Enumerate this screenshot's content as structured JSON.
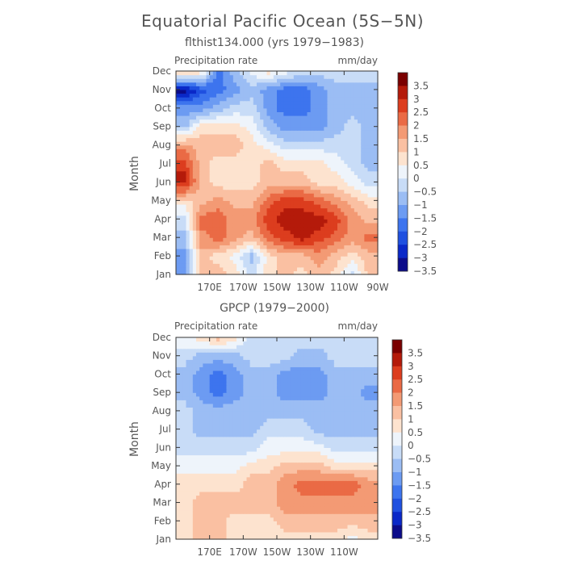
{
  "figure_title": "Equatorial Pacific Ocean (5S−5N)",
  "colorscale": {
    "colors": [
      "#0b0b8a",
      "#0a28c8",
      "#1f50e0",
      "#3d74ee",
      "#6c9bf2",
      "#9bbdf4",
      "#c8dcf7",
      "#eef4fb",
      "#fde3cf",
      "#fac0a2",
      "#f39a74",
      "#ea6a45",
      "#dc3d1e",
      "#b41a0a",
      "#7a0000"
    ],
    "labels": [
      "3.5",
      "3",
      "2.5",
      "2",
      "1.5",
      "1",
      "0.5",
      "0",
      "−0.5",
      "−1",
      "−1.5",
      "−2",
      "−2.5",
      "−3",
      "−3.5"
    ]
  },
  "chart_data": [
    {
      "type": "heatmap",
      "title": "flthist134.000 (yrs 1979−1983)",
      "field_label": "Precipitation rate",
      "units": "mm/day",
      "xlabel": "",
      "ylabel": "Month",
      "xlim": [
        150,
        270
      ],
      "x_ticks": [
        "170E",
        "170W",
        "150W",
        "130W",
        "110W",
        "90W"
      ],
      "x_tick_values": [
        170,
        190,
        210,
        230,
        250,
        270
      ],
      "y_ticks": [
        "Jan",
        "Feb",
        "Mar",
        "Apr",
        "May",
        "Jun",
        "Jul",
        "Aug",
        "Sep",
        "Oct",
        "Nov",
        "Dec"
      ],
      "legend": "right",
      "lon_nodes": [
        155,
        165,
        175,
        185,
        195,
        205,
        215,
        225,
        235,
        245,
        255,
        265
      ],
      "values": [
        [
          -1.5,
          1.0,
          1.0,
          0.5,
          -0.5,
          0.5,
          1.0,
          0.5,
          1.0,
          0.5,
          -0.5,
          1.0
        ],
        [
          -1.5,
          1.0,
          0.5,
          0.0,
          -1.0,
          0.5,
          1.0,
          1.0,
          1.5,
          1.0,
          0.5,
          1.0
        ],
        [
          -1.0,
          1.5,
          2.0,
          1.5,
          1.0,
          2.0,
          2.5,
          3.0,
          2.5,
          2.0,
          1.5,
          2.0
        ],
        [
          -0.5,
          2.0,
          2.0,
          1.5,
          1.5,
          2.5,
          3.0,
          3.0,
          3.0,
          2.5,
          1.5,
          1.0
        ],
        [
          0.5,
          1.0,
          1.5,
          1.0,
          1.0,
          2.0,
          2.5,
          2.5,
          2.0,
          1.5,
          1.0,
          0.5
        ],
        [
          3.0,
          1.0,
          0.5,
          0.5,
          0.5,
          1.0,
          1.0,
          1.0,
          0.5,
          0.5,
          0.0,
          -0.5
        ],
        [
          2.5,
          1.0,
          0.5,
          0.5,
          0.5,
          1.0,
          0.5,
          0.5,
          0.5,
          0.0,
          -0.5,
          -1.0
        ],
        [
          1.5,
          1.0,
          1.0,
          1.0,
          0.5,
          0.0,
          -0.5,
          -0.5,
          -0.5,
          -0.5,
          -0.5,
          -1.0
        ],
        [
          -1.0,
          0.5,
          0.5,
          0.5,
          0.0,
          -1.0,
          -1.5,
          -1.5,
          -1.5,
          -1.0,
          -0.5,
          -1.0
        ],
        [
          -1.5,
          -1.5,
          -1.0,
          -0.5,
          -0.5,
          -1.5,
          -2.0,
          -2.0,
          -1.5,
          -1.0,
          -1.0,
          -1.0
        ],
        [
          -3.5,
          -2.5,
          -2.0,
          -1.5,
          -1.0,
          -1.5,
          -2.0,
          -2.0,
          -1.5,
          -1.0,
          -1.0,
          -1.0
        ],
        [
          1.0,
          0.5,
          -2.0,
          -1.0,
          0.0,
          0.5,
          0.0,
          -0.5,
          -0.5,
          -0.5,
          -0.5,
          -0.5
        ]
      ]
    },
    {
      "type": "heatmap",
      "title": "GPCP (1979−2000)",
      "field_label": "Precipitation rate",
      "units": "mm/day",
      "xlabel": "",
      "ylabel": "Month",
      "xlim": [
        150,
        270
      ],
      "x_ticks": [
        "170E",
        "170W",
        "150W",
        "130W",
        "110W"
      ],
      "x_tick_values": [
        170,
        190,
        210,
        230,
        250
      ],
      "y_ticks": [
        "Jan",
        "Feb",
        "Mar",
        "Apr",
        "May",
        "Jun",
        "Jul",
        "Aug",
        "Sep",
        "Oct",
        "Nov",
        "Dec"
      ],
      "legend": "right",
      "lon_nodes": [
        155,
        165,
        175,
        185,
        195,
        205,
        215,
        225,
        235,
        245,
        255,
        265
      ],
      "values": [
        [
          0.5,
          1.0,
          1.0,
          0.5,
          0.5,
          0.5,
          0.5,
          0.5,
          0.5,
          0.5,
          0.0,
          0.5
        ],
        [
          0.5,
          1.0,
          1.0,
          0.5,
          0.5,
          0.5,
          1.0,
          1.0,
          1.0,
          1.0,
          1.0,
          1.0
        ],
        [
          0.5,
          1.0,
          1.0,
          1.0,
          1.0,
          1.0,
          1.5,
          1.5,
          1.5,
          1.5,
          1.5,
          1.5
        ],
        [
          0.5,
          0.5,
          0.5,
          0.5,
          1.0,
          1.0,
          1.5,
          2.0,
          2.0,
          2.0,
          2.0,
          1.5
        ],
        [
          0.0,
          0.0,
          0.0,
          0.0,
          0.5,
          0.5,
          1.0,
          1.0,
          1.0,
          0.5,
          0.5,
          0.5
        ],
        [
          -0.5,
          -0.5,
          -0.5,
          -0.5,
          -0.5,
          0.0,
          0.0,
          0.0,
          0.0,
          -0.5,
          -0.5,
          -0.5
        ],
        [
          -0.5,
          -1.0,
          -1.0,
          -1.0,
          -1.0,
          -0.5,
          -0.5,
          -0.5,
          -1.0,
          -1.0,
          -1.0,
          -1.0
        ],
        [
          -0.5,
          -1.0,
          -1.0,
          -1.0,
          -1.0,
          -1.0,
          -1.0,
          -1.0,
          -1.0,
          -1.0,
          -1.0,
          -1.0
        ],
        [
          -1.0,
          -1.5,
          -2.0,
          -1.5,
          -1.0,
          -1.0,
          -1.5,
          -1.5,
          -1.5,
          -1.0,
          -1.0,
          -1.5
        ],
        [
          -1.0,
          -1.5,
          -2.0,
          -1.5,
          -1.0,
          -1.0,
          -1.5,
          -1.5,
          -1.5,
          -1.0,
          -1.0,
          -1.0
        ],
        [
          -0.5,
          -1.0,
          -1.0,
          -1.0,
          -0.5,
          -0.5,
          -0.5,
          -1.0,
          -1.0,
          -0.5,
          -0.5,
          -0.5
        ],
        [
          0.0,
          0.5,
          1.0,
          0.5,
          -0.5,
          -0.5,
          -0.5,
          -0.5,
          -0.5,
          -0.5,
          -0.5,
          -0.5
        ]
      ]
    }
  ]
}
